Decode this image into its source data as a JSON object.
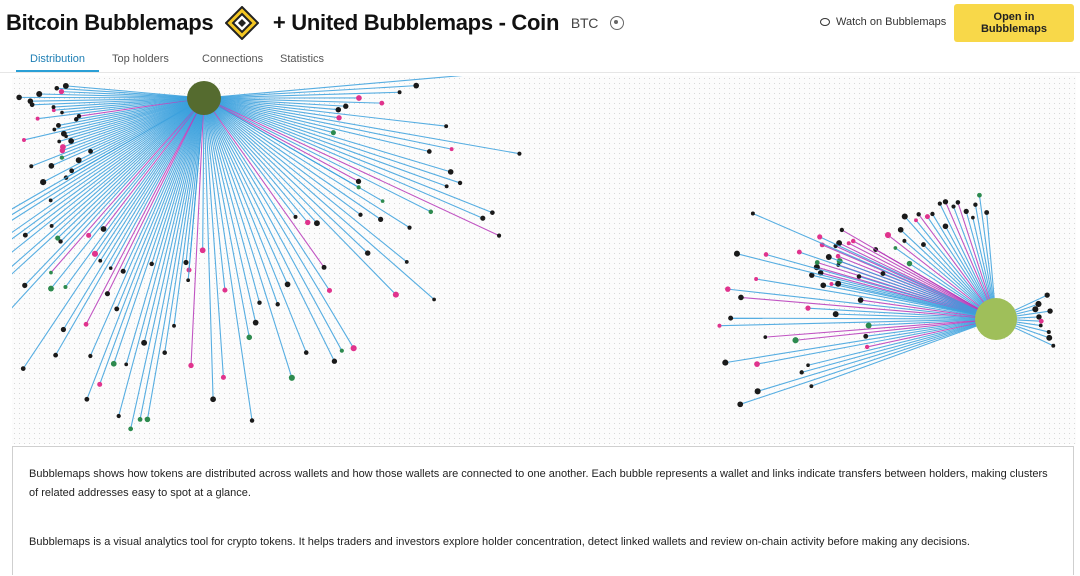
{
  "header": {
    "title_left": "Bitcoin Bubblemaps",
    "title_right": "+ United Bubblemaps - Coin",
    "title_suffix": "BTC",
    "watch_label": "Watch on Bubblemaps",
    "cta_label": "Open in Bubblemaps",
    "logo_icon": "diamond-logo-icon"
  },
  "tabs": [
    {
      "label": "Distribution",
      "active": true
    },
    {
      "label": "Top holders",
      "active": false
    },
    {
      "label": "Connections",
      "active": false
    },
    {
      "label": "Statistics",
      "active": false
    }
  ],
  "graph": {
    "colors": {
      "edge": "#3aa0dd",
      "edge_alt": "#b637b8",
      "hub1": "#556b2f",
      "hub2": "#9fbf5a",
      "node_dark": "#1a1a1a",
      "node_pink": "#e0338d",
      "node_green": "#2d8a4e"
    }
  },
  "description": {
    "paragraph1": "Bubblemaps shows how tokens are distributed across wallets and how those wallets are connected to one another. Each bubble represents a wallet and links indicate transfers between holders, making clusters of related addresses easy to spot at a glance.",
    "paragraph2": "Bubblemaps is a visual analytics tool for crypto tokens. It helps traders and investors explore holder concentration, detect linked wallets and review on-chain activity before making any decisions."
  }
}
